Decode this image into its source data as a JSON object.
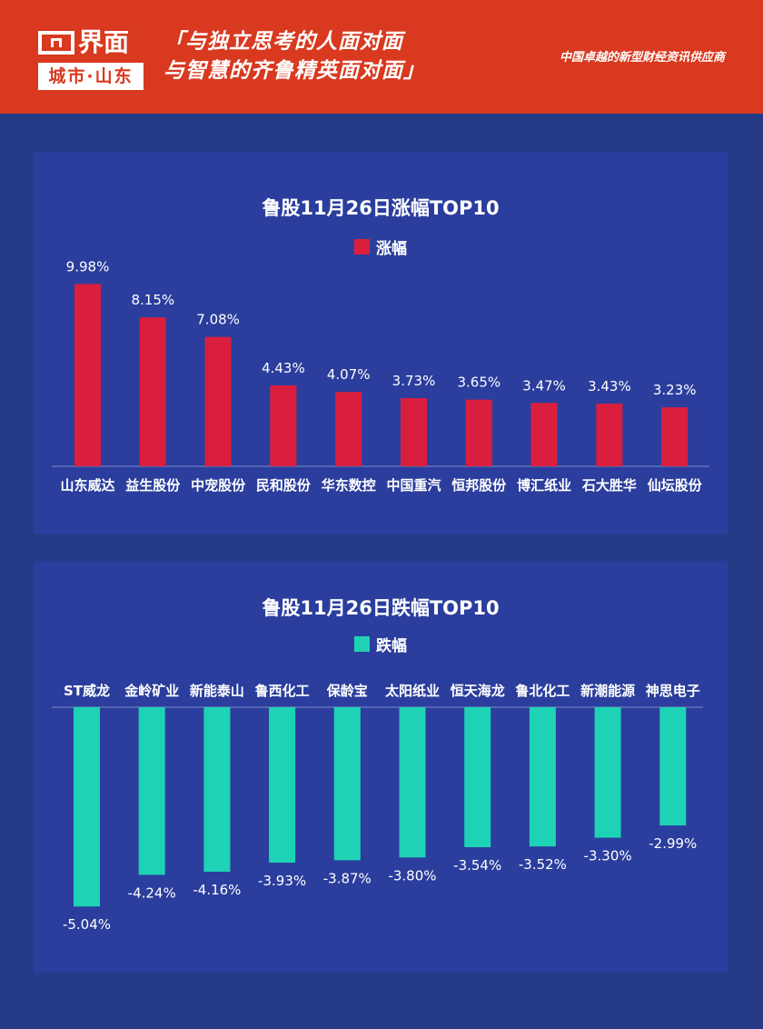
{
  "header": {
    "logo_text": "界面",
    "logo_sub": "城市·山东",
    "slogan_line1": "「与独立思考的人面对面",
    "slogan_line2": "与智慧的齐鲁精英面对面」",
    "tagline": "中国卓越的新型财经资讯供应商"
  },
  "colors": {
    "header_bg": "#d8391f",
    "page_bg": "#243a86",
    "panel_bg": "#2b3e9d",
    "rise": "#d91f3d",
    "fall": "#1ed3b5"
  },
  "chart_data": [
    {
      "type": "bar",
      "title": "鲁股11月26日涨幅TOP10",
      "legend": "涨幅",
      "categories": [
        "山东威达",
        "益生股份",
        "中宠股份",
        "民和股份",
        "华东数控",
        "中国重汽",
        "恒邦股份",
        "博汇纸业",
        "石大胜华",
        "仙坛股份"
      ],
      "values": [
        9.98,
        8.15,
        7.08,
        4.43,
        4.07,
        3.73,
        3.65,
        3.47,
        3.43,
        3.23
      ],
      "value_labels": [
        "9.98%",
        "8.15%",
        "7.08%",
        "4.43%",
        "4.07%",
        "3.73%",
        "3.65%",
        "3.47%",
        "3.43%",
        "3.23%"
      ],
      "color": "#d91f3d"
    },
    {
      "type": "bar",
      "title": "鲁股11月26日跌幅TOP10",
      "legend": "跌幅",
      "categories": [
        "ST威龙",
        "金岭矿业",
        "新能泰山",
        "鲁西化工",
        "保龄宝",
        "太阳纸业",
        "恒天海龙",
        "鲁北化工",
        "新潮能源",
        "神思电子"
      ],
      "values": [
        -5.04,
        -4.24,
        -4.16,
        -3.93,
        -3.87,
        -3.8,
        -3.54,
        -3.52,
        -3.3,
        -2.99
      ],
      "value_labels": [
        "-5.04%",
        "-4.24%",
        "-4.16%",
        "-3.93%",
        "-3.87%",
        "-3.80%",
        "-3.54%",
        "-3.52%",
        "-3.30%",
        "-2.99%"
      ],
      "color": "#1ed3b5"
    }
  ]
}
